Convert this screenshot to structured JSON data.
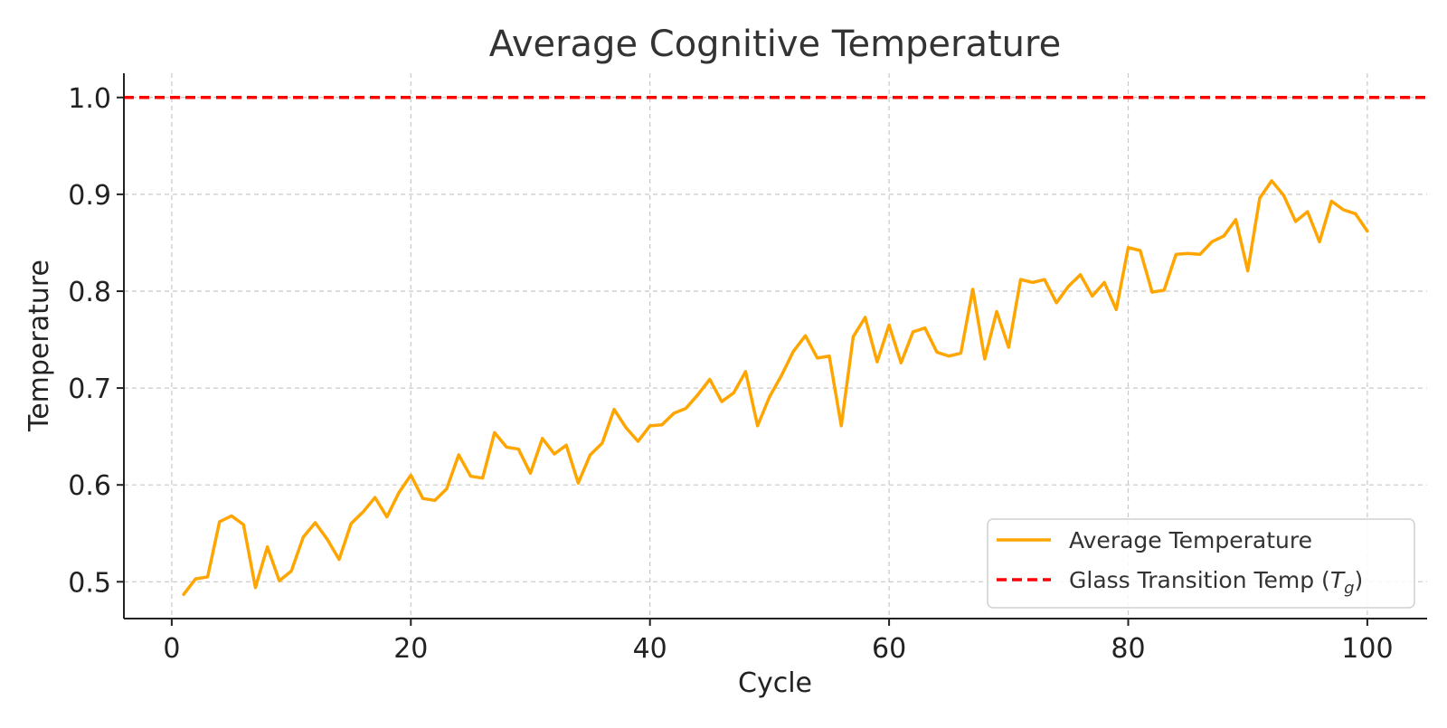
{
  "chart_data": {
    "type": "line",
    "title": "Average Cognitive Temperature",
    "xlabel": "Cycle",
    "ylabel": "Temperature",
    "xlim": [
      -4,
      105
    ],
    "ylim": [
      0.462,
      1.025
    ],
    "xticks": [
      0,
      20,
      40,
      60,
      80,
      100
    ],
    "yticks": [
      0.5,
      0.6,
      0.7,
      0.8,
      0.9,
      1.0
    ],
    "xtick_labels": [
      "0",
      "20",
      "40",
      "60",
      "80",
      "100"
    ],
    "ytick_labels": [
      "0.5",
      "0.6",
      "0.7",
      "0.8",
      "0.9",
      "1.0"
    ],
    "grid": true,
    "legend_position": "lower-right",
    "series": [
      {
        "name": "Average Temperature",
        "color": "#FFA500",
        "style": "solid",
        "x": [
          1,
          2,
          3,
          4,
          5,
          6,
          7,
          8,
          9,
          10,
          11,
          12,
          13,
          14,
          15,
          16,
          17,
          18,
          19,
          20,
          21,
          22,
          23,
          24,
          25,
          26,
          27,
          28,
          29,
          30,
          31,
          32,
          33,
          34,
          35,
          36,
          37,
          38,
          39,
          40,
          41,
          42,
          43,
          44,
          45,
          46,
          47,
          48,
          49,
          50,
          51,
          52,
          53,
          54,
          55,
          56,
          57,
          58,
          59,
          60,
          61,
          62,
          63,
          64,
          65,
          66,
          67,
          68,
          69,
          70,
          71,
          72,
          73,
          74,
          75,
          76,
          77,
          78,
          79,
          80,
          81,
          82,
          83,
          84,
          85,
          86,
          87,
          88,
          89,
          90,
          91,
          92,
          93,
          94,
          95,
          96,
          97,
          98,
          99,
          100
        ],
        "values": [
          0.487,
          0.503,
          0.505,
          0.562,
          0.568,
          0.559,
          0.494,
          0.536,
          0.501,
          0.511,
          0.546,
          0.561,
          0.544,
          0.523,
          0.56,
          0.572,
          0.587,
          0.567,
          0.592,
          0.61,
          0.586,
          0.584,
          0.596,
          0.631,
          0.609,
          0.607,
          0.654,
          0.639,
          0.637,
          0.612,
          0.648,
          0.632,
          0.641,
          0.602,
          0.631,
          0.643,
          0.678,
          0.659,
          0.645,
          0.661,
          0.662,
          0.674,
          0.679,
          0.693,
          0.709,
          0.686,
          0.695,
          0.717,
          0.661,
          0.691,
          0.713,
          0.738,
          0.754,
          0.731,
          0.733,
          0.661,
          0.753,
          0.773,
          0.727,
          0.765,
          0.726,
          0.758,
          0.762,
          0.737,
          0.733,
          0.736,
          0.802,
          0.73,
          0.779,
          0.742,
          0.812,
          0.809,
          0.812,
          0.788,
          0.805,
          0.817,
          0.795,
          0.809,
          0.781,
          0.845,
          0.842,
          0.799,
          0.801,
          0.838,
          0.839,
          0.838,
          0.851,
          0.857,
          0.874,
          0.821,
          0.896,
          0.914,
          0.899,
          0.872,
          0.882,
          0.851,
          0.893,
          0.884,
          0.88,
          0.862
        ]
      },
      {
        "name": "Glass Transition Temp (T_g)",
        "color": "#FF0000",
        "style": "dashed",
        "y": 1.0
      }
    ],
    "legend": {
      "line_label": "Average Temperature",
      "hline_label_prefix": "Glass Transition Temp (",
      "hline_label_symbol": "T",
      "hline_label_subscript": "g",
      "hline_label_suffix": ")"
    }
  }
}
